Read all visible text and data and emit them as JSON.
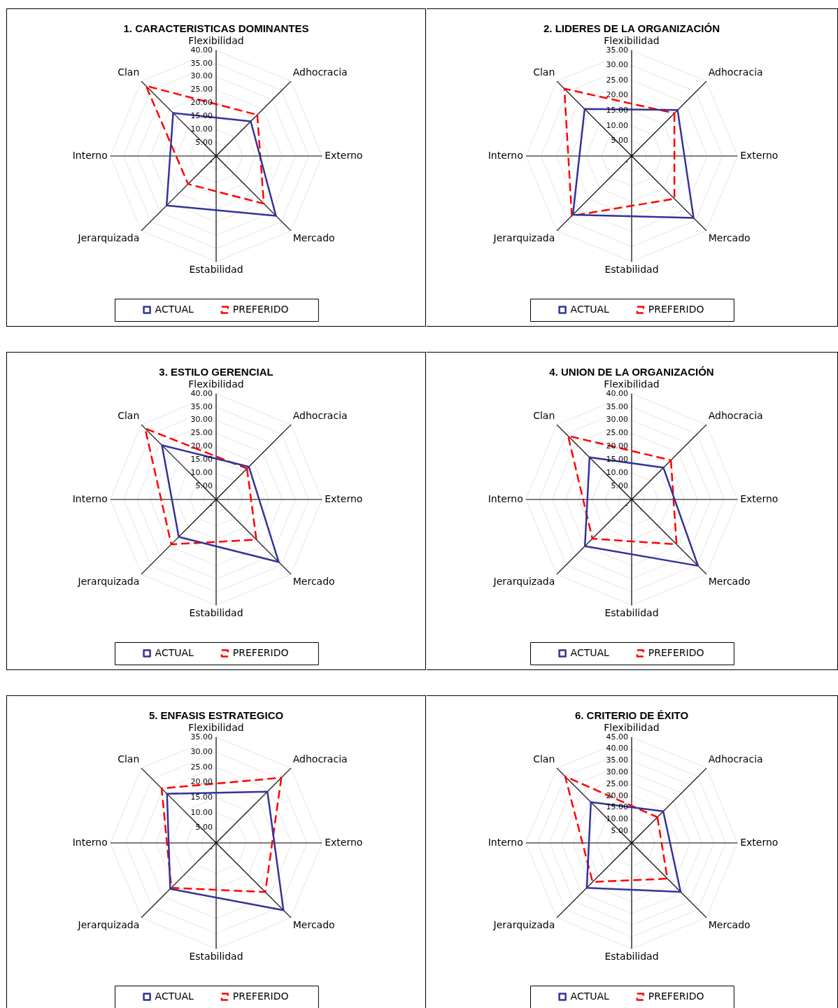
{
  "chart_data": [
    {
      "type": "radar",
      "title": "1. CARACTERISTICAS DOMINANTES",
      "categories": [
        "Flexibilidad",
        "Adhocracia",
        "Externo",
        "Mercado",
        "Estabilidad",
        "Jerarquizada",
        "Interno",
        "Clan"
      ],
      "series": [
        {
          "name": "ACTUAL",
          "color": "#333399",
          "line_style": "solid",
          "values": [
            null,
            18.5,
            null,
            32,
            null,
            26.5,
            null,
            23
          ]
        },
        {
          "name": "PREFERIDO",
          "color": "#ff0000",
          "line_style": "dashed",
          "values": [
            null,
            22,
            null,
            25.5,
            null,
            15,
            null,
            37.5
          ]
        }
      ],
      "ylim": [
        0,
        40
      ],
      "yticks": [
        {
          "value": 0,
          "label": "-"
        },
        {
          "value": 5,
          "label": "5.00"
        },
        {
          "value": 10,
          "label": "10.00"
        },
        {
          "value": 15,
          "label": "15.00"
        },
        {
          "value": 20,
          "label": "20.00"
        },
        {
          "value": 25,
          "label": "25.00"
        },
        {
          "value": 30,
          "label": "30.00"
        },
        {
          "value": 35,
          "label": "35.00"
        },
        {
          "value": 40,
          "label": "40.00"
        }
      ],
      "grid": true,
      "legend": "bottom",
      "marker": "none"
    },
    {
      "type": "radar",
      "title": "2. LIDERES DE LA ORGANIZACIÓN",
      "categories": [
        "Flexibilidad",
        "Adhocracia",
        "Externo",
        "Mercado",
        "Estabilidad",
        "Jerarquizada",
        "Interno",
        "Clan"
      ],
      "series": [
        {
          "name": "ACTUAL",
          "color": "#333399",
          "line_style": "solid",
          "values": [
            null,
            21.5,
            null,
            29,
            null,
            27.5,
            null,
            22
          ]
        },
        {
          "name": "PREFERIDO",
          "color": "#ff0000",
          "line_style": "dashed",
          "values": [
            null,
            20,
            null,
            20,
            null,
            28,
            null,
            31.5
          ]
        }
      ],
      "ylim": [
        0,
        35
      ],
      "yticks": [
        {
          "value": 0,
          "label": "-"
        },
        {
          "value": 5,
          "label": "5.00"
        },
        {
          "value": 10,
          "label": "10.00"
        },
        {
          "value": 15,
          "label": "15.00"
        },
        {
          "value": 20,
          "label": "20.00"
        },
        {
          "value": 25,
          "label": "25.00"
        },
        {
          "value": 30,
          "label": "30.00"
        },
        {
          "value": 35,
          "label": "35.00"
        }
      ],
      "grid": true,
      "legend": "bottom",
      "marker": "none"
    },
    {
      "type": "radar",
      "title": "3. ESTILO GERENCIAL",
      "categories": [
        "Flexibilidad",
        "Adhocracia",
        "Externo",
        "Mercado",
        "Estabilidad",
        "Jerarquizada",
        "Interno",
        "Clan"
      ],
      "series": [
        {
          "name": "ACTUAL",
          "color": "#333399",
          "line_style": "solid",
          "values": [
            null,
            17.5,
            null,
            33.5,
            null,
            20,
            null,
            29
          ]
        },
        {
          "name": "PREFERIDO",
          "color": "#ff0000",
          "line_style": "dashed",
          "values": [
            null,
            16.5,
            null,
            21.5,
            null,
            24,
            null,
            38
          ]
        }
      ],
      "ylim": [
        0,
        40
      ],
      "yticks": [
        {
          "value": 0,
          "label": "-"
        },
        {
          "value": 5,
          "label": "5.00"
        },
        {
          "value": 10,
          "label": "10.00"
        },
        {
          "value": 15,
          "label": "15.00"
        },
        {
          "value": 20,
          "label": "20.00"
        },
        {
          "value": 25,
          "label": "25.00"
        },
        {
          "value": 30,
          "label": "30.00"
        },
        {
          "value": 35,
          "label": "35.00"
        },
        {
          "value": 40,
          "label": "40.00"
        }
      ],
      "grid": true,
      "legend": "bottom",
      "marker": "none"
    },
    {
      "type": "radar",
      "title": "4. UNION DE LA ORGANIZACIÓN",
      "categories": [
        "Flexibilidad",
        "Adhocracia",
        "Externo",
        "Mercado",
        "Estabilidad",
        "Jerarquizada",
        "Interno",
        "Clan"
      ],
      "series": [
        {
          "name": "ACTUAL",
          "color": "#333399",
          "line_style": "solid",
          "values": [
            null,
            17,
            null,
            35.5,
            null,
            25,
            null,
            22.5
          ]
        },
        {
          "name": "PREFERIDO",
          "color": "#ff0000",
          "line_style": "dashed",
          "values": [
            null,
            21,
            null,
            24,
            null,
            21,
            null,
            34
          ]
        }
      ],
      "ylim": [
        0,
        40
      ],
      "yticks": [
        {
          "value": 0,
          "label": "-"
        },
        {
          "value": 5,
          "label": "5.00"
        },
        {
          "value": 10,
          "label": "10.00"
        },
        {
          "value": 15,
          "label": "15.00"
        },
        {
          "value": 20,
          "label": "20.00"
        },
        {
          "value": 25,
          "label": "25.00"
        },
        {
          "value": 30,
          "label": "30.00"
        },
        {
          "value": 35,
          "label": "35.00"
        },
        {
          "value": 40,
          "label": "40.00"
        }
      ],
      "grid": true,
      "legend": "bottom",
      "marker": "none"
    },
    {
      "type": "radar",
      "title": "5. ENFASIS ESTRATEGICO",
      "categories": [
        "Flexibilidad",
        "Adhocracia",
        "Externo",
        "Mercado",
        "Estabilidad",
        "Jerarquizada",
        "Interno",
        "Clan"
      ],
      "series": [
        {
          "name": "ACTUAL",
          "color": "#333399",
          "line_style": "solid",
          "values": [
            null,
            24,
            null,
            31.5,
            null,
            21.5,
            null,
            23
          ]
        },
        {
          "name": "PREFERIDO",
          "color": "#ff0000",
          "line_style": "dashed",
          "values": [
            null,
            30.5,
            null,
            23,
            null,
            21,
            null,
            25.5
          ]
        }
      ],
      "ylim": [
        0,
        35
      ],
      "yticks": [
        {
          "value": 0,
          "label": "-"
        },
        {
          "value": 5,
          "label": "5.00"
        },
        {
          "value": 10,
          "label": "10.00"
        },
        {
          "value": 15,
          "label": "15.00"
        },
        {
          "value": 20,
          "label": "20.00"
        },
        {
          "value": 25,
          "label": "25.00"
        },
        {
          "value": 30,
          "label": "30.00"
        },
        {
          "value": 35,
          "label": "35.00"
        }
      ],
      "grid": true,
      "legend": "bottom",
      "marker": "none"
    },
    {
      "type": "radar",
      "title": "6. CRITERIO DE ÉXITO",
      "categories": [
        "Flexibilidad",
        "Adhocracia",
        "Externo",
        "Mercado",
        "Estabilidad",
        "Jerarquizada",
        "Interno",
        "Clan"
      ],
      "series": [
        {
          "name": "ACTUAL",
          "color": "#333399",
          "line_style": "solid",
          "values": [
            null,
            19,
            null,
            29.5,
            null,
            27,
            null,
            24.5
          ]
        },
        {
          "name": "PREFERIDO",
          "color": "#ff0000",
          "line_style": "dashed",
          "values": [
            null,
            15.5,
            null,
            21.5,
            null,
            23.5,
            null,
            40
          ]
        }
      ],
      "ylim": [
        0,
        45
      ],
      "yticks": [
        {
          "value": 0,
          "label": "-"
        },
        {
          "value": 5,
          "label": "5.00"
        },
        {
          "value": 10,
          "label": "10.00"
        },
        {
          "value": 15,
          "label": "15.00"
        },
        {
          "value": 20,
          "label": "20.00"
        },
        {
          "value": 25,
          "label": "25.00"
        },
        {
          "value": 30,
          "label": "30.00"
        },
        {
          "value": 35,
          "label": "35.00"
        },
        {
          "value": 40,
          "label": "40.00"
        },
        {
          "value": 45,
          "label": "45.00"
        }
      ],
      "grid": true,
      "legend": "bottom",
      "marker": "none"
    }
  ]
}
